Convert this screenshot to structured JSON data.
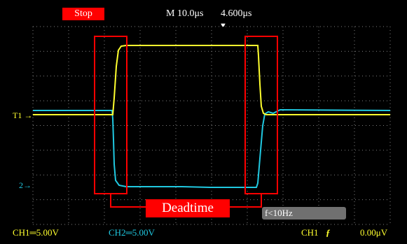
{
  "header": {
    "run_state": "Stop",
    "timebase": "M 10.0μs",
    "trigger_time": "4.600μs",
    "trigger_marker": "▼"
  },
  "channels": {
    "ch1_marker": "T1 →",
    "ch2_marker": "2→",
    "ch1_scale": "CH1═5.00V",
    "ch2_scale": "CH2═5.00V"
  },
  "trigger": {
    "source": "CH1",
    "edge": "ƒ",
    "level": "0.00μV"
  },
  "freq_readout": "f<10Hz",
  "annotation": {
    "label": "Deadtime"
  },
  "colors": {
    "ch1": "#ffff2e",
    "ch2": "#20c8e0",
    "annotation": "#ff0000",
    "grid": "#808080"
  }
}
